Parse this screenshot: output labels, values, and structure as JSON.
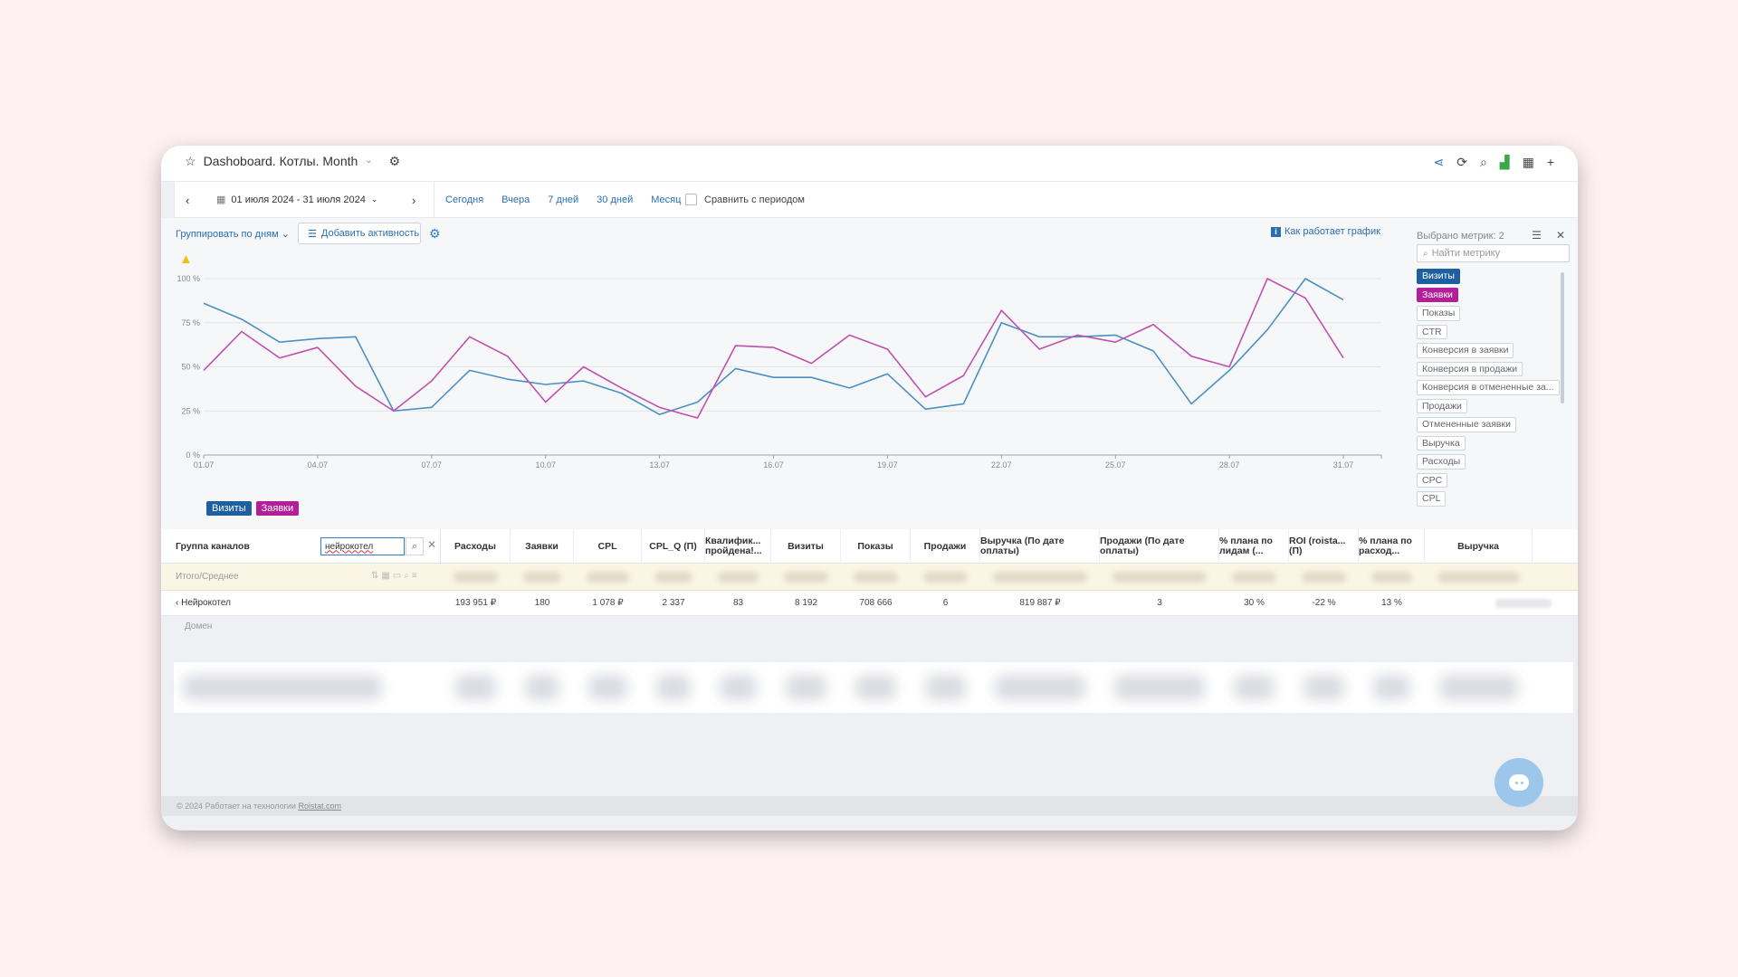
{
  "header": {
    "title": "Dashoboard. Котлы. Month"
  },
  "toolbar": {
    "date_range": "01 июля 2024 - 31 июля 2024",
    "periods": [
      "Сегодня",
      "Вчера",
      "7 дней",
      "30 дней",
      "Месяц"
    ],
    "compare_label": "Сравнить с периодом"
  },
  "chart_controls": {
    "group_by": "Группировать по дням",
    "add_activity": "Добавить активность",
    "how_link": "Как работает график"
  },
  "chart_data": {
    "type": "line",
    "x": [
      "01.07",
      "02.07",
      "03.07",
      "04.07",
      "05.07",
      "06.07",
      "07.07",
      "08.07",
      "09.07",
      "10.07",
      "11.07",
      "12.07",
      "13.07",
      "14.07",
      "15.07",
      "16.07",
      "17.07",
      "18.07",
      "19.07",
      "20.07",
      "21.07",
      "22.07",
      "23.07",
      "24.07",
      "25.07",
      "26.07",
      "27.07",
      "28.07",
      "29.07",
      "30.07",
      "31.07",
      "01.08"
    ],
    "xticks": [
      "01.07",
      "04.07",
      "07.07",
      "10.07",
      "13.07",
      "16.07",
      "19.07",
      "22.07",
      "25.07",
      "28.07",
      "31.07"
    ],
    "yticks": [
      "0 %",
      "25 %",
      "50 %",
      "75 %",
      "100 %"
    ],
    "ylim": [
      0,
      100
    ],
    "series": [
      {
        "name": "Визиты",
        "color": "#4a90c2",
        "values": [
          86,
          77,
          64,
          66,
          67,
          25,
          27,
          48,
          43,
          40,
          42,
          35,
          23,
          30,
          49,
          44,
          44,
          38,
          46,
          26,
          29,
          75,
          67,
          67,
          68,
          59,
          29,
          48,
          71,
          100,
          88,
          null
        ]
      },
      {
        "name": "Заявки",
        "color": "#c050b0",
        "values": [
          48,
          70,
          55,
          61,
          39,
          25,
          42,
          67,
          56,
          30,
          50,
          38,
          27,
          21,
          62,
          61,
          52,
          68,
          60,
          33,
          45,
          82,
          60,
          68,
          64,
          74,
          56,
          50,
          100,
          89,
          55,
          null
        ]
      }
    ]
  },
  "metrics_panel": {
    "title": "Выбрано метрик: 2",
    "search_placeholder": "Найти метрику",
    "items": [
      "Визиты",
      "Заявки",
      "Показы",
      "CTR",
      "Конверсия в заявки",
      "Конверсия в продажи",
      "Конверсия в отмененные за...",
      "Продажи",
      "Отмененные заявки",
      "Выручка",
      "Расходы",
      "CPC",
      "CPL"
    ]
  },
  "table": {
    "first_header": "Группа каналов",
    "filter_value": "нейрокотел",
    "headers": [
      "Расходы",
      "Заявки",
      "CPL",
      "CPL_Q (П)",
      "Квалифик... пройдена!...",
      "Визиты",
      "Показы",
      "Продажи",
      "Выручка (По дате оплаты)",
      "Продажи (По дате оплаты)",
      "% плана по лидам (...",
      "ROI (roista... (П)",
      "% плана по расход...",
      "Выручка"
    ],
    "total_label": "Итого/Среднее",
    "row": {
      "label": "Нейрокотел",
      "values": [
        "193 951 ₽",
        "180",
        "1 078 ₽",
        "2 337",
        "83",
        "8 192",
        "708 666",
        "6",
        "819 887 ₽",
        "3",
        "30 %",
        "-22 %",
        "13 %",
        ""
      ]
    },
    "domain_label": "Домен"
  },
  "footer": {
    "text": "© 2024 Работает на технологии",
    "link": "Roistat.com"
  }
}
